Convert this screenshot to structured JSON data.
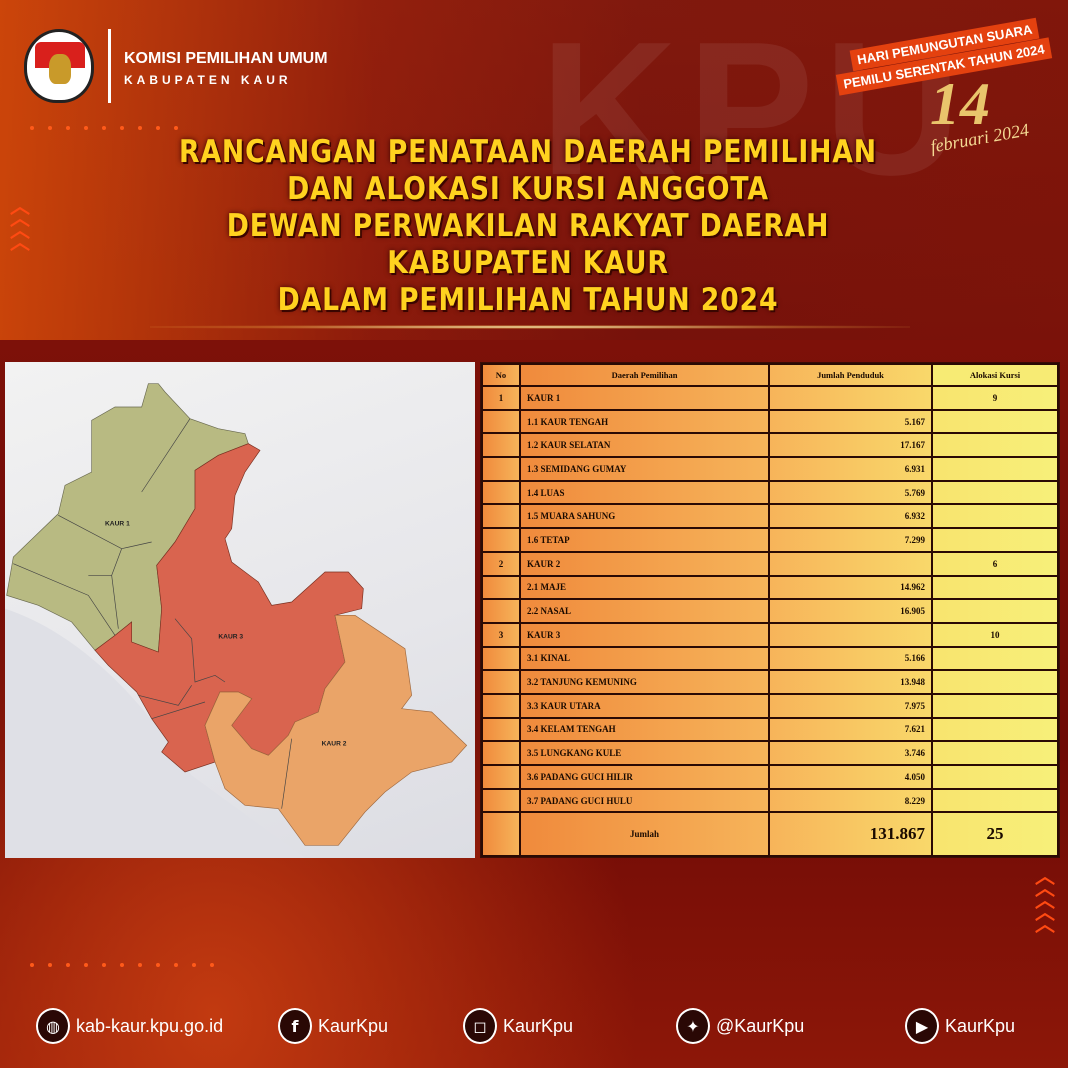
{
  "header": {
    "org_name": "KOMISI PEMILIHAN UMUM",
    "org_region": "KABUPATEN KAUR",
    "logo_text": [
      "KOMISI",
      "PEMILIHAN UMUM"
    ],
    "background_text": "KPU",
    "badge_line1": "HARI PEMUNGUTAN SUARA",
    "badge_line2": "PEMILU SERENTAK TAHUN 2024",
    "date_day": "14",
    "date_rest": "februari 2024"
  },
  "title": [
    "RANCANGAN PENATAAN DAERAH PEMILIHAN",
    "DAN ALOKASI KURSI ANGGOTA",
    "DEWAN PERWAKILAN RAKYAT DAERAH",
    "KABUPATEN KAUR",
    "DALAM PEMILIHAN TAHUN 2024"
  ],
  "map": {
    "regions": [
      {
        "label": "KAUR 1",
        "color": "#b8ba82"
      },
      {
        "label": "KAUR 3",
        "color": "#d9644f"
      },
      {
        "label": "KAUR 2",
        "color": "#eaa468"
      }
    ]
  },
  "table": {
    "headers": [
      "No",
      "Daerah Pemilihan",
      "Jumlah Penduduk",
      "Alokasi Kursi"
    ],
    "rows": [
      [
        "1",
        "KAUR 1",
        "",
        "9"
      ],
      [
        "",
        "1.1 KAUR TENGAH",
        "5.167",
        ""
      ],
      [
        "",
        "1.2 KAUR SELATAN",
        "17.167",
        ""
      ],
      [
        "",
        "1.3 SEMIDANG GUMAY",
        "6.931",
        ""
      ],
      [
        "",
        "1.4 LUAS",
        "5.769",
        ""
      ],
      [
        "",
        "1.5 MUARA SAHUNG",
        "6.932",
        ""
      ],
      [
        "",
        "1.6 TETAP",
        "7.299",
        ""
      ],
      [
        "2",
        "KAUR 2",
        "",
        "6"
      ],
      [
        "",
        "2.1 MAJE",
        "14.962",
        ""
      ],
      [
        "",
        "2.2 NASAL",
        "16.905",
        ""
      ],
      [
        "3",
        "KAUR 3",
        "",
        "10"
      ],
      [
        "",
        "3.1 KINAL",
        "5.166",
        ""
      ],
      [
        "",
        "3.2 TANJUNG KEMUNING",
        "13.948",
        ""
      ],
      [
        "",
        "3.3 KAUR UTARA",
        "7.975",
        ""
      ],
      [
        "",
        "3.4 KELAM TENGAH",
        "7.621",
        ""
      ],
      [
        "",
        "3.5 LUNGKANG KULE",
        "3.746",
        ""
      ],
      [
        "",
        "3.6 PADANG GUCI HILIR",
        "4.050",
        ""
      ],
      [
        "",
        "3.7 PADANG GUCI HULU",
        "8.229",
        ""
      ]
    ],
    "total": {
      "label": "Jumlah",
      "population": "131.867",
      "seats": "25"
    }
  },
  "footer": [
    {
      "icon": "globe-icon",
      "text": "kab-kaur.kpu.go.id"
    },
    {
      "icon": "facebook-icon",
      "text": "KaurKpu"
    },
    {
      "icon": "instagram-icon",
      "text": "KaurKpu"
    },
    {
      "icon": "twitter-icon",
      "text": "@KaurKpu"
    },
    {
      "icon": "youtube-icon",
      "text": "KaurKpu"
    }
  ]
}
